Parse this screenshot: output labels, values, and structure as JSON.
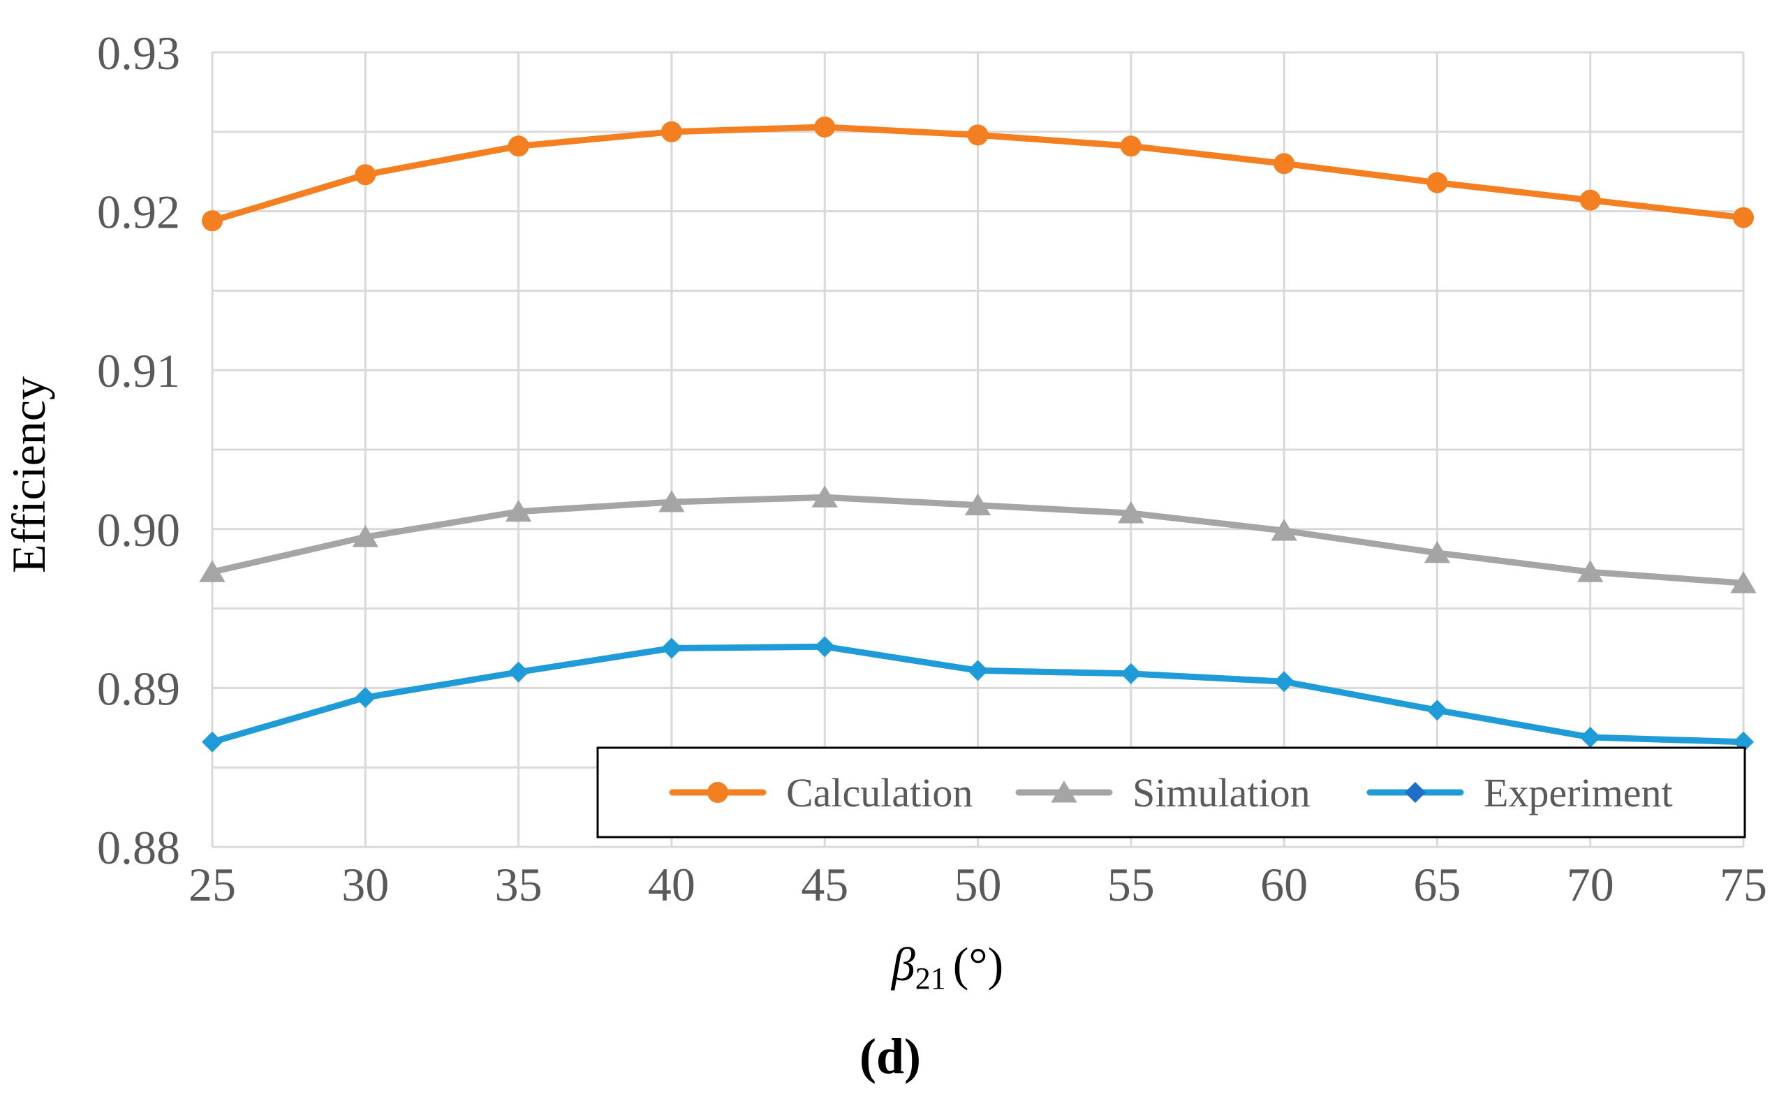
{
  "chart_data": {
    "type": "line",
    "title": "",
    "xlabel": "β21 (°)",
    "xlabel_symbol": "β",
    "xlabel_subscript": "21",
    "xlabel_unit": "(°)",
    "ylabel": "Efficiency",
    "panel_label": "(d)",
    "x": [
      25,
      30,
      35,
      40,
      45,
      50,
      55,
      60,
      65,
      70,
      75
    ],
    "x_tick_labels": [
      "25",
      "30",
      "35",
      "40",
      "45",
      "50",
      "55",
      "60",
      "65",
      "70",
      "75"
    ],
    "ylim": [
      0.88,
      0.93
    ],
    "y_ticks": [
      0.88,
      0.885,
      0.89,
      0.895,
      0.9,
      0.905,
      0.91,
      0.915,
      0.92,
      0.925,
      0.93
    ],
    "y_tick_labels": [
      "0.88",
      "",
      "0.89",
      "",
      "0.90",
      "",
      "0.91",
      "",
      "0.92",
      "",
      "0.93"
    ],
    "grid": true,
    "legend_position": "bottom-right",
    "series": [
      {
        "name": "Calculation",
        "color": "#F47F20",
        "marker": "circle",
        "values": [
          0.9194,
          0.9223,
          0.9241,
          0.925,
          0.9253,
          0.9248,
          0.9241,
          0.923,
          0.9218,
          0.9207,
          0.9196
        ]
      },
      {
        "name": "Simulation",
        "color": "#A5A5A5",
        "marker": "triangle",
        "values": [
          0.8973,
          0.8995,
          0.9011,
          0.9017,
          0.902,
          0.9015,
          0.901,
          0.8999,
          0.8985,
          0.8973,
          0.8966
        ]
      },
      {
        "name": "Experiment",
        "color": "#1F9BD8",
        "legend_marker_color": "#1F6FC6",
        "marker": "diamond",
        "values": [
          0.8866,
          0.8894,
          0.891,
          0.8925,
          0.8926,
          0.8911,
          0.8909,
          0.8904,
          0.8886,
          0.8869,
          0.8866
        ]
      }
    ]
  }
}
